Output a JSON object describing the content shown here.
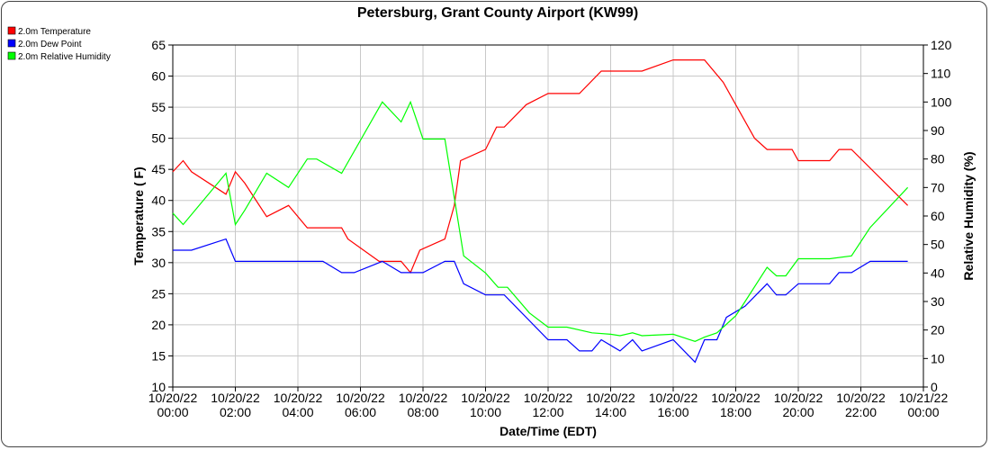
{
  "chart_data": {
    "type": "line",
    "title": "Petersburg, Grant County Airport (KW99)",
    "xlabel": "Date/Time (EDT)",
    "ylabel": "Temperature ( F)",
    "y2label": "Relative Humidity (%)",
    "ylim": [
      10,
      65
    ],
    "y2lim": [
      0,
      120
    ],
    "xlim": [
      0,
      24
    ],
    "grid": true,
    "legend_position": "top-left",
    "x_ticks": [
      {
        "x": 0,
        "l1": "10/20/22",
        "l2": "00:00"
      },
      {
        "x": 2,
        "l1": "10/20/22",
        "l2": "02:00"
      },
      {
        "x": 4,
        "l1": "10/20/22",
        "l2": "04:00"
      },
      {
        "x": 6,
        "l1": "10/20/22",
        "l2": "06:00"
      },
      {
        "x": 8,
        "l1": "10/20/22",
        "l2": "08:00"
      },
      {
        "x": 10,
        "l1": "10/20/22",
        "l2": "10:00"
      },
      {
        "x": 12,
        "l1": "10/20/22",
        "l2": "12:00"
      },
      {
        "x": 14,
        "l1": "10/20/22",
        "l2": "14:00"
      },
      {
        "x": 16,
        "l1": "10/20/22",
        "l2": "16:00"
      },
      {
        "x": 18,
        "l1": "10/20/22",
        "l2": "18:00"
      },
      {
        "x": 20,
        "l1": "10/20/22",
        "l2": "20:00"
      },
      {
        "x": 22,
        "l1": "10/20/22",
        "l2": "22:00"
      },
      {
        "x": 24,
        "l1": "10/21/22",
        "l2": "00:00"
      }
    ],
    "y_ticks": [
      10,
      15,
      20,
      25,
      30,
      35,
      40,
      45,
      50,
      55,
      60,
      65
    ],
    "y2_ticks": [
      0,
      10,
      20,
      30,
      40,
      50,
      60,
      70,
      80,
      90,
      100,
      110,
      120
    ],
    "series": [
      {
        "name": "2.0m Temperature",
        "color": "#ff0000",
        "axis": "left",
        "points": [
          [
            0,
            44.6
          ],
          [
            0.33,
            46.4
          ],
          [
            0.6,
            44.6
          ],
          [
            1.7,
            41
          ],
          [
            2.0,
            44.6
          ],
          [
            2.3,
            42.8
          ],
          [
            3.0,
            37.4
          ],
          [
            3.7,
            39.2
          ],
          [
            4.3,
            35.6
          ],
          [
            5.4,
            35.6
          ],
          [
            5.6,
            33.8
          ],
          [
            6.6,
            30.2
          ],
          [
            7.3,
            30.2
          ],
          [
            7.6,
            28.4
          ],
          [
            7.9,
            32
          ],
          [
            8.7,
            33.8
          ],
          [
            9.0,
            39.2
          ],
          [
            9.2,
            46.4
          ],
          [
            10.0,
            48.2
          ],
          [
            10.35,
            51.8
          ],
          [
            10.6,
            51.8
          ],
          [
            11.3,
            55.4
          ],
          [
            12.0,
            57.2
          ],
          [
            12.4,
            57.2
          ],
          [
            13.0,
            57.2
          ],
          [
            13.7,
            60.8
          ],
          [
            15.0,
            60.8
          ],
          [
            16.0,
            62.6
          ],
          [
            17.0,
            62.6
          ],
          [
            17.6,
            59
          ],
          [
            18.0,
            55.4
          ],
          [
            18.6,
            50
          ],
          [
            19.0,
            48.2
          ],
          [
            19.8,
            48.2
          ],
          [
            20.0,
            46.4
          ],
          [
            21.0,
            46.4
          ],
          [
            21.3,
            48.2
          ],
          [
            21.7,
            48.2
          ],
          [
            23.5,
            39.2
          ]
        ]
      },
      {
        "name": "2.0m Dew Point",
        "color": "#0000ff",
        "axis": "left",
        "points": [
          [
            0,
            32
          ],
          [
            0.6,
            32
          ],
          [
            1.7,
            33.8
          ],
          [
            2.0,
            30.2
          ],
          [
            4.8,
            30.2
          ],
          [
            5.4,
            28.4
          ],
          [
            5.8,
            28.4
          ],
          [
            6.7,
            30.2
          ],
          [
            7.3,
            28.4
          ],
          [
            8.0,
            28.4
          ],
          [
            8.7,
            30.2
          ],
          [
            9.0,
            30.2
          ],
          [
            9.3,
            26.6
          ],
          [
            10.0,
            24.8
          ],
          [
            10.6,
            24.8
          ],
          [
            12.0,
            17.6
          ],
          [
            12.6,
            17.6
          ],
          [
            13.0,
            15.8
          ],
          [
            13.4,
            15.8
          ],
          [
            13.7,
            17.6
          ],
          [
            14.0,
            16.7
          ],
          [
            14.3,
            15.8
          ],
          [
            14.7,
            17.6
          ],
          [
            15.0,
            15.8
          ],
          [
            16.0,
            17.6
          ],
          [
            16.7,
            14
          ],
          [
            17.0,
            17.6
          ],
          [
            17.4,
            17.6
          ],
          [
            17.7,
            21.2
          ],
          [
            18.3,
            23
          ],
          [
            19.0,
            26.6
          ],
          [
            19.3,
            24.8
          ],
          [
            19.6,
            24.8
          ],
          [
            20.0,
            26.6
          ],
          [
            21.0,
            26.6
          ],
          [
            21.3,
            28.4
          ],
          [
            21.7,
            28.4
          ],
          [
            22.3,
            30.2
          ],
          [
            23.5,
            30.2
          ]
        ]
      },
      {
        "name": "2.0m Relative Humidity",
        "color": "#00ff00",
        "axis": "right",
        "points": [
          [
            0,
            61
          ],
          [
            0.33,
            57
          ],
          [
            1.7,
            75
          ],
          [
            2.0,
            57
          ],
          [
            2.3,
            62
          ],
          [
            3.0,
            75
          ],
          [
            3.7,
            70
          ],
          [
            4.3,
            80
          ],
          [
            4.6,
            80
          ],
          [
            5.4,
            75
          ],
          [
            6.7,
            100
          ],
          [
            7.3,
            93
          ],
          [
            7.6,
            100
          ],
          [
            8.0,
            87
          ],
          [
            8.7,
            87
          ],
          [
            9.3,
            46
          ],
          [
            10.0,
            40
          ],
          [
            10.4,
            35
          ],
          [
            10.7,
            35
          ],
          [
            11.4,
            26
          ],
          [
            12.0,
            21
          ],
          [
            12.6,
            21
          ],
          [
            13.4,
            19
          ],
          [
            14.0,
            18.5
          ],
          [
            14.3,
            18
          ],
          [
            14.7,
            19
          ],
          [
            15.0,
            18
          ],
          [
            16.0,
            18.5
          ],
          [
            16.7,
            16
          ],
          [
            17.0,
            17.5
          ],
          [
            17.4,
            19
          ],
          [
            18.0,
            25
          ],
          [
            18.3,
            30
          ],
          [
            19.0,
            42
          ],
          [
            19.3,
            39
          ],
          [
            19.6,
            39
          ],
          [
            20.0,
            45
          ],
          [
            21.0,
            45
          ],
          [
            21.7,
            46
          ],
          [
            22.3,
            56
          ],
          [
            23.5,
            70
          ]
        ]
      }
    ]
  }
}
